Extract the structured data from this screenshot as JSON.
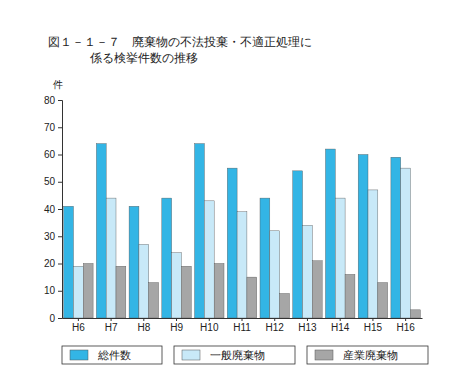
{
  "chart_data": {
    "type": "bar",
    "title": [
      "図１－１－７　廃棄物の不法投棄・不適正処理に",
      "係る検挙件数の推移"
    ],
    "y_label": "件",
    "categories": [
      "H6",
      "H7",
      "H8",
      "H9",
      "H10",
      "H11",
      "H12",
      "H13",
      "H14",
      "H15",
      "H16"
    ],
    "series": [
      {
        "name": "総件数",
        "color": "#33b5e5",
        "values": [
          41,
          64,
          41,
          44,
          64,
          55,
          44,
          54,
          62,
          60,
          59
        ]
      },
      {
        "name": "一般廃棄物",
        "color": "#c8e9f8",
        "values": [
          19,
          44,
          27,
          24,
          43,
          39,
          32,
          34,
          44,
          47,
          55
        ]
      },
      {
        "name": "産業廃棄物",
        "color": "#a6a6a6",
        "values": [
          20,
          19,
          13,
          19,
          20,
          15,
          9,
          21,
          16,
          13,
          3
        ]
      }
    ],
    "ylim": [
      0,
      80
    ],
    "yticks": [
      0,
      10,
      20,
      30,
      40,
      50,
      60,
      70,
      80
    ],
    "grid": false,
    "legend": "bottom"
  }
}
